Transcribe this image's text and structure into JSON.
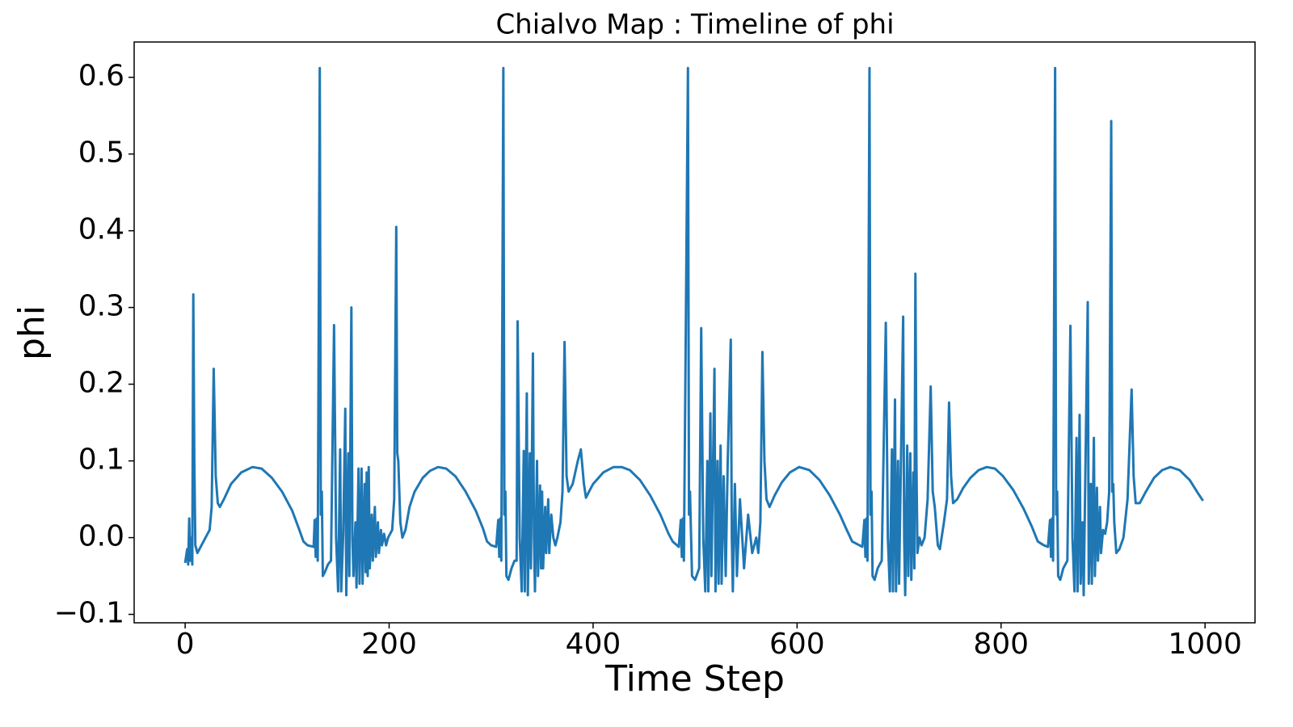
{
  "chart_data": {
    "type": "line",
    "title": "Chialvo Map : Timeline of phi",
    "x_label": "Time Step",
    "y_label": "phi",
    "color": "#1f77b4",
    "grid": false,
    "xlim": [
      -50,
      1049
    ],
    "ylim": [
      -0.111,
      0.646
    ],
    "xticks": [
      0,
      200,
      400,
      600,
      800,
      1000
    ],
    "yticks": [
      {
        "value": -0.1,
        "label": "−0.1"
      },
      {
        "value": 0,
        "label": "0.0"
      },
      0.1,
      0.2,
      0.3,
      0.4,
      0.5,
      0.6
    ],
    "x": [
      0,
      2,
      3,
      4,
      5,
      6,
      7,
      8,
      9,
      10,
      12,
      16,
      20,
      24,
      26,
      28,
      30,
      32,
      34,
      38,
      45,
      55,
      66,
      75,
      85,
      95,
      105,
      112,
      116,
      120,
      126,
      127,
      128,
      129,
      130,
      132,
      133,
      134,
      135,
      137,
      140,
      143,
      146,
      148,
      150,
      152,
      153,
      155,
      157,
      158,
      160,
      161,
      163,
      164,
      165,
      167,
      168,
      170,
      171,
      173,
      174,
      176,
      177,
      178,
      179,
      180,
      181,
      183,
      184,
      186,
      187,
      189,
      190,
      192,
      193,
      195,
      197,
      199,
      201,
      203,
      205,
      207,
      208,
      209,
      211,
      213,
      216,
      220,
      225,
      233,
      240,
      248,
      256,
      265,
      275,
      285,
      292,
      296,
      300,
      305,
      307,
      308,
      309,
      310,
      312,
      313,
      314,
      315,
      317,
      320,
      323,
      325,
      326,
      328,
      330,
      332,
      333,
      335,
      336,
      338,
      339,
      341,
      342,
      343,
      345,
      346,
      348,
      349,
      350,
      351,
      353,
      354,
      356,
      357,
      359,
      361,
      363,
      365,
      368,
      370,
      372,
      374,
      376,
      380,
      385,
      388,
      391,
      393,
      396,
      400,
      410,
      420,
      428,
      436,
      446,
      456,
      466,
      474,
      478,
      484,
      486,
      487,
      488,
      489,
      493,
      494,
      495,
      497,
      500,
      504,
      506,
      508,
      510,
      512,
      513,
      515,
      516,
      519,
      520,
      522,
      523,
      525,
      526,
      528,
      530,
      532,
      535,
      536,
      537,
      539,
      541,
      544,
      548,
      552,
      556,
      560,
      562,
      564,
      566,
      568,
      570,
      573,
      578,
      585,
      593,
      602,
      612,
      622,
      632,
      642,
      648,
      654,
      664,
      666,
      667,
      668,
      669,
      671,
      672,
      673,
      674,
      676,
      679,
      683,
      687,
      689,
      691,
      693,
      694,
      696,
      697,
      699,
      700,
      704,
      705,
      706,
      708,
      709,
      711,
      712,
      714,
      715,
      716,
      717,
      718,
      720,
      722,
      725,
      728,
      731,
      733,
      735,
      738,
      740,
      744,
      747,
      749,
      751,
      753,
      757,
      763,
      770,
      778,
      786,
      794,
      802,
      812,
      822,
      830,
      836,
      842,
      846,
      848,
      849,
      850,
      851,
      853,
      854,
      855,
      856,
      858,
      861,
      865,
      868,
      870,
      872,
      874,
      875,
      877,
      878,
      880,
      881,
      885,
      886,
      888,
      889,
      891,
      892,
      894,
      895,
      897,
      898,
      900,
      902,
      904,
      906,
      908,
      909,
      910,
      911,
      913,
      916,
      920,
      924,
      928,
      930,
      932,
      936,
      942,
      950,
      958,
      966,
      975,
      985,
      993,
      998
    ],
    "values": [
      -0.033,
      -0.015,
      -0.035,
      0.025,
      -0.03,
      0.0,
      -0.035,
      0.317,
      0.1,
      -0.01,
      -0.02,
      -0.01,
      0.0,
      0.01,
      0.04,
      0.22,
      0.08,
      0.045,
      0.04,
      0.05,
      0.07,
      0.085,
      0.092,
      0.09,
      0.078,
      0.06,
      0.035,
      0.01,
      -0.005,
      -0.01,
      -0.012,
      0.023,
      -0.025,
      0.025,
      -0.03,
      0.612,
      0.03,
      0.06,
      -0.05,
      -0.045,
      -0.035,
      -0.03,
      0.277,
      0.0,
      -0.07,
      0.115,
      -0.07,
      0.005,
      0.168,
      -0.075,
      0.11,
      -0.05,
      0.3,
      0.0,
      -0.05,
      0.02,
      -0.065,
      0.09,
      -0.06,
      0.09,
      -0.06,
      0.07,
      -0.045,
      0.085,
      -0.05,
      0.092,
      -0.04,
      0.03,
      -0.03,
      0.04,
      -0.025,
      0.02,
      -0.02,
      0.01,
      -0.01,
      0.005,
      -0.01,
      0.0,
      0.005,
      0.01,
      0.05,
      0.405,
      0.11,
      0.1,
      0.02,
      0.0,
      0.01,
      0.04,
      0.06,
      0.078,
      0.087,
      0.092,
      0.09,
      0.08,
      0.06,
      0.035,
      0.012,
      -0.005,
      -0.01,
      -0.012,
      0.023,
      -0.025,
      0.025,
      -0.03,
      0.612,
      0.03,
      0.06,
      -0.05,
      -0.055,
      -0.04,
      -0.03,
      -0.03,
      0.282,
      0.0,
      -0.07,
      0.113,
      -0.07,
      0.188,
      -0.075,
      0.11,
      -0.04,
      0.24,
      0.0,
      -0.07,
      0.1,
      -0.05,
      0.068,
      -0.04,
      0.06,
      -0.04,
      0.04,
      -0.02,
      0.05,
      -0.02,
      0.03,
      0.0,
      -0.01,
      0.0,
      0.02,
      0.06,
      0.255,
      0.08,
      0.06,
      0.07,
      0.1,
      0.115,
      0.07,
      0.052,
      0.06,
      0.07,
      0.085,
      0.092,
      0.092,
      0.088,
      0.075,
      0.055,
      0.03,
      0.005,
      -0.005,
      -0.012,
      0.023,
      -0.025,
      0.025,
      -0.03,
      0.612,
      0.03,
      0.06,
      -0.05,
      -0.055,
      -0.04,
      0.273,
      0.0,
      -0.07,
      0.1,
      -0.07,
      0.162,
      -0.05,
      0.22,
      -0.07,
      0.1,
      -0.06,
      0.12,
      -0.06,
      0.08,
      -0.05,
      0.1,
      0.258,
      0.0,
      -0.07,
      0.07,
      -0.05,
      0.05,
      -0.04,
      0.03,
      -0.02,
      0.0,
      -0.02,
      0.02,
      0.242,
      0.1,
      0.05,
      0.04,
      0.055,
      0.072,
      0.085,
      0.092,
      0.088,
      0.075,
      0.055,
      0.03,
      0.012,
      -0.005,
      -0.012,
      0.023,
      -0.025,
      0.025,
      -0.03,
      0.612,
      0.03,
      0.06,
      -0.05,
      -0.055,
      -0.04,
      -0.03,
      0.28,
      0.0,
      -0.07,
      0.115,
      -0.07,
      0.18,
      -0.07,
      0.1,
      -0.06,
      0.288,
      0.0,
      -0.075,
      0.12,
      -0.05,
      0.11,
      -0.055,
      0.085,
      -0.04,
      0.344,
      0.1,
      -0.02,
      0.0,
      -0.01,
      0.0,
      0.05,
      0.197,
      0.06,
      0.04,
      -0.01,
      -0.015,
      0.02,
      0.05,
      0.176,
      0.08,
      0.045,
      0.05,
      0.065,
      0.078,
      0.088,
      0.092,
      0.09,
      0.08,
      0.062,
      0.038,
      0.015,
      -0.005,
      -0.01,
      -0.012,
      0.023,
      -0.025,
      0.025,
      -0.03,
      0.612,
      0.03,
      0.06,
      -0.05,
      -0.055,
      -0.04,
      -0.03,
      0.276,
      0.0,
      -0.07,
      0.13,
      -0.07,
      0.16,
      -0.06,
      0.02,
      -0.075,
      0.307,
      -0.06,
      0.07,
      -0.06,
      0.13,
      -0.05,
      0.065,
      -0.03,
      0.04,
      -0.02,
      0.01,
      0.005,
      0.02,
      0.06,
      0.543,
      0.06,
      0.07,
      0.02,
      -0.02,
      -0.015,
      0.0,
      0.05,
      0.193,
      0.08,
      0.045,
      0.045,
      0.06,
      0.078,
      0.088,
      0.092,
      0.088,
      0.075,
      0.058,
      0.048
    ]
  }
}
